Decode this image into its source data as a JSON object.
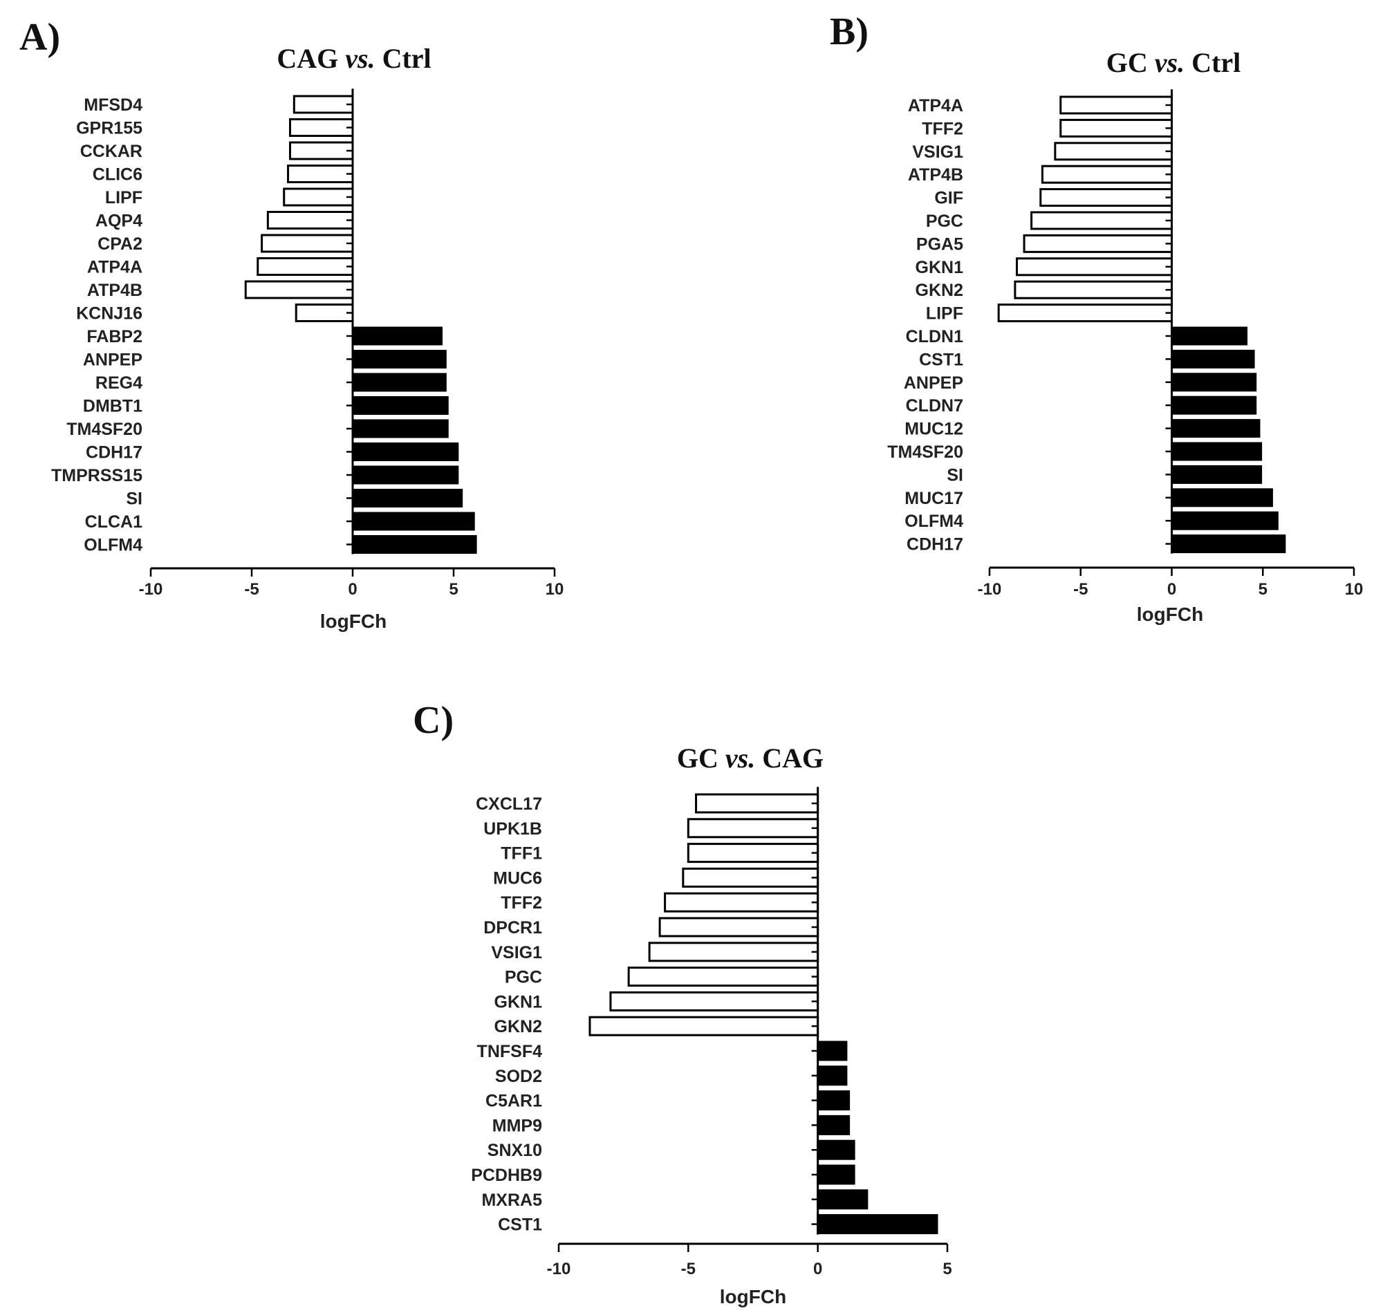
{
  "chart_data": [
    {
      "panel": "A)",
      "type": "bar",
      "orientation": "horizontal",
      "title_main": "CAG",
      "title_vs": "vs.",
      "title_rest": "Ctrl",
      "xlabel": "logFCh",
      "xlim": [
        -10,
        10
      ],
      "xticks": [
        -10,
        -5,
        0,
        5,
        10
      ],
      "negative_fill": "#ffffff",
      "positive_fill": "#000000",
      "categories": [
        "MFSD4",
        "GPR155",
        "CCKAR",
        "CLIC6",
        "LIPF",
        "AQP4",
        "CPA2",
        "ATP4A",
        "ATP4B",
        "KCNJ16",
        "FABP2",
        "ANPEP",
        "REG4",
        "DMBT1",
        "TM4SF20",
        "CDH17",
        "TMPRSS15",
        "SI",
        "CLCA1",
        "OLFM4"
      ],
      "values": [
        -2.9,
        -3.1,
        -3.1,
        -3.2,
        -3.4,
        -4.2,
        -4.5,
        -4.7,
        -5.3,
        -2.8,
        4.4,
        4.6,
        4.6,
        4.7,
        4.7,
        5.2,
        5.2,
        5.4,
        6.0,
        6.1
      ]
    },
    {
      "panel": "B)",
      "type": "bar",
      "orientation": "horizontal",
      "title_main": "GC",
      "title_vs": "vs.",
      "title_rest": "Ctrl",
      "xlabel": "logFCh",
      "xlim": [
        -10,
        10
      ],
      "xticks": [
        -10,
        -5,
        0,
        5,
        10
      ],
      "negative_fill": "#ffffff",
      "positive_fill": "#000000",
      "categories": [
        "ATP4A",
        "TFF2",
        "VSIG1",
        "ATP4B",
        "GIF",
        "PGC",
        "PGA5",
        "GKN1",
        "GKN2",
        "LIPF",
        "CLDN1",
        "CST1",
        "ANPEP",
        "CLDN7",
        "MUC12",
        "TM4SF20",
        "SI",
        "MUC17",
        "OLFM4",
        "CDH17"
      ],
      "values": [
        -6.1,
        -6.1,
        -6.4,
        -7.1,
        -7.2,
        -7.7,
        -8.1,
        -8.5,
        -8.6,
        -9.5,
        4.1,
        4.5,
        4.6,
        4.6,
        4.8,
        4.9,
        4.9,
        5.5,
        5.8,
        6.2
      ]
    },
    {
      "panel": "C)",
      "type": "bar",
      "orientation": "horizontal",
      "title_main": "GC",
      "title_vs": "vs.",
      "title_rest": "CAG",
      "xlabel": "logFCh",
      "xlim": [
        -10,
        5
      ],
      "xticks": [
        -10,
        -5,
        0,
        5
      ],
      "negative_fill": "#ffffff",
      "positive_fill": "#000000",
      "categories": [
        "CXCL17",
        "UPK1B",
        "TFF1",
        "MUC6",
        "TFF2",
        "DPCR1",
        "VSIG1",
        "PGC",
        "GKN1",
        "GKN2",
        "TNFSF4",
        "SOD2",
        "C5AR1",
        "MMP9",
        "SNX10",
        "PCDHB9",
        "MXRA5",
        "CST1"
      ],
      "values": [
        -4.7,
        -5.0,
        -5.0,
        -5.2,
        -5.9,
        -6.1,
        -6.5,
        -7.3,
        -8.0,
        -8.8,
        1.1,
        1.1,
        1.2,
        1.2,
        1.4,
        1.4,
        1.9,
        4.6
      ]
    }
  ]
}
